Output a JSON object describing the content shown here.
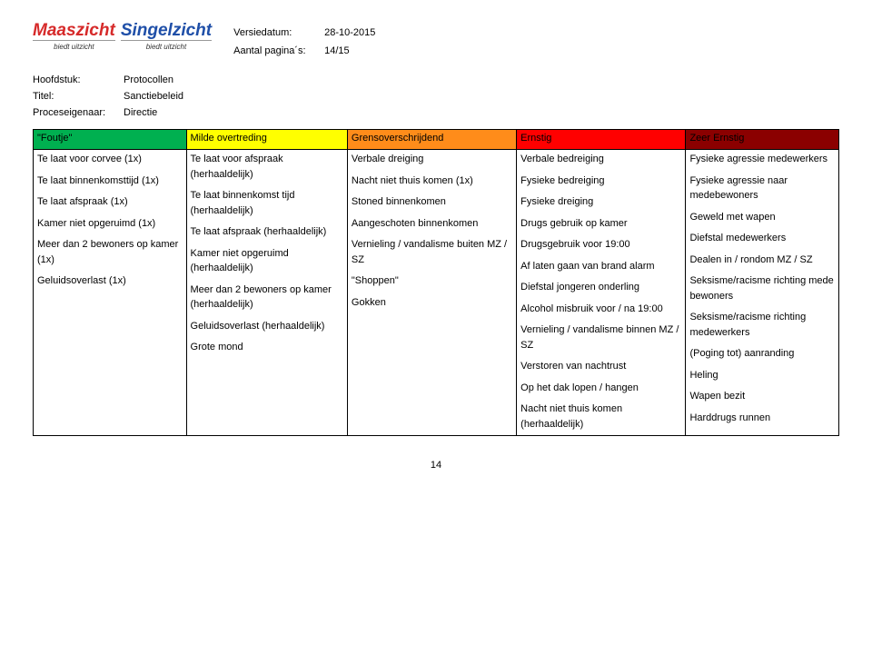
{
  "logo": {
    "main": "Maaszicht",
    "second": "Singelzicht",
    "tag": "biedt uitzicht"
  },
  "meta": {
    "versiedatum_label": "Versiedatum:",
    "versiedatum": "28-10-2015",
    "paginas_label": "Aantal pagina´s:",
    "paginas": "14/15"
  },
  "doc": {
    "hoofdstuk_label": "Hoofdstuk:",
    "hoofdstuk": "Protocollen",
    "titel_label": "Titel:",
    "titel": "Sanctiebeleid",
    "eigenaar_label": "Proceseigenaar:",
    "eigenaar": "Directie"
  },
  "headers": [
    "\"Foutje\"",
    "Milde overtreding",
    "Grensoverschrijdend",
    "Ernstig",
    "Zeer Ernstig"
  ],
  "header_bg": [
    "#00b050",
    "#ffff00",
    "#ff8c1a",
    "#ff0000",
    "#8b0000"
  ],
  "cells": {
    "col0": [
      "Te laat voor corvee (1x)",
      "Te laat binnenkomsttijd (1x)",
      "Te laat afspraak (1x)",
      "Kamer niet opgeruimd (1x)",
      "Meer dan 2 bewoners op kamer (1x)",
      "Geluidsoverlast (1x)"
    ],
    "col1": [
      "Te laat voor afspraak (herhaaldelijk)",
      "Te laat binnenkomst tijd (herhaaldelijk)",
      "Te laat afspraak (herhaaldelijk)",
      "Kamer niet opgeruimd (herhaaldelijk)",
      "Meer dan 2 bewoners op kamer (herhaaldelijk)",
      "Geluidsoverlast (herhaaldelijk)",
      "Grote mond"
    ],
    "col2": [
      "Verbale dreiging",
      "Nacht niet thuis komen (1x)",
      "Stoned binnenkomen",
      "Aangeschoten binnenkomen",
      "Vernieling / vandalisme buiten MZ / SZ",
      "\"Shoppen\"",
      "Gokken"
    ],
    "col3": [
      "Verbale bedreiging",
      "Fysieke bedreiging",
      "Fysieke dreiging",
      "Drugs gebruik op kamer",
      "Drugsgebruik voor 19:00",
      "Af laten gaan van brand alarm",
      "Diefstal jongeren onderling",
      "Alcohol misbruik voor / na 19:00",
      "Vernieling / vandalisme binnen MZ / SZ",
      "Verstoren van nachtrust",
      "Op het dak lopen / hangen",
      "Nacht niet thuis komen (herhaaldelijk)"
    ],
    "col4": [
      "Fysieke agressie medewerkers",
      "Fysieke agressie naar medebewoners",
      "Geweld met wapen",
      "Diefstal medewerkers",
      "Dealen in / rondom MZ / SZ",
      "Seksisme/racisme richting mede bewoners",
      "Seksisme/racisme richting medewerkers",
      "(Poging tot) aanranding",
      "Heling",
      "Wapen bezit",
      "Harddrugs runnen"
    ]
  },
  "page_number": "14"
}
